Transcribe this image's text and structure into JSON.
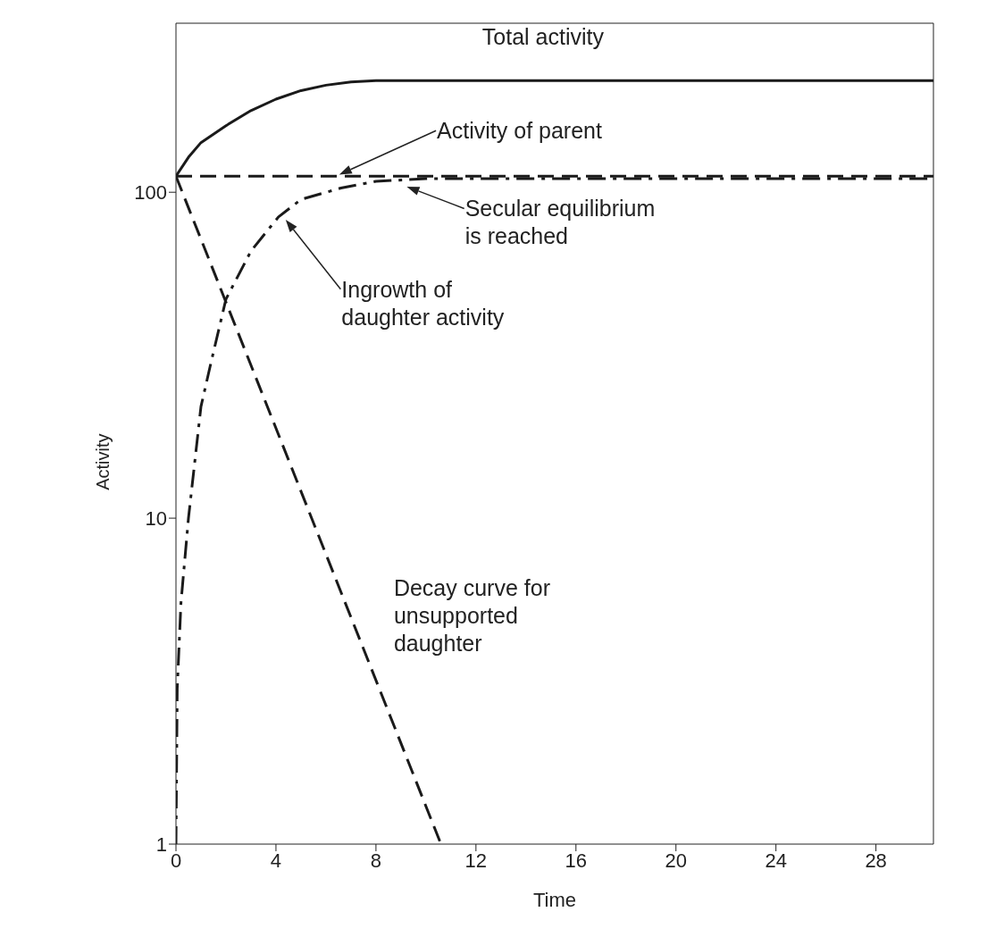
{
  "chart_data": {
    "type": "line",
    "xlabel": "Time",
    "ylabel": "Activity",
    "log": "y",
    "xlim": [
      0,
      30.3
    ],
    "xticks": [
      0,
      4,
      8,
      12,
      16,
      20,
      24,
      28
    ],
    "ylim": [
      1,
      330
    ],
    "yticks": [
      1,
      10,
      100
    ],
    "marker": "none",
    "series": [
      {
        "color": "#1a1a1a",
        "line_style": "solid",
        "x": [
          0,
          0.5,
          1,
          2,
          3,
          4,
          5,
          6,
          7,
          8,
          10,
          15,
          20,
          25,
          30.3
        ],
        "values": [
          112,
          128,
          142,
          160,
          178,
          193,
          205,
          213,
          218,
          220,
          220,
          220,
          220,
          220,
          220
        ]
      },
      {
        "color": "#1a1a1a",
        "line_style": "dashed",
        "x": [
          0,
          30.3
        ],
        "values": [
          112,
          112
        ]
      },
      {
        "color": "#1a1a1a",
        "line_style": "dashdot",
        "x": [
          0,
          0.05,
          0.2,
          0.5,
          1,
          1.4,
          2,
          3,
          4.1,
          5,
          6.6,
          8,
          10,
          15,
          20,
          30.3
        ],
        "values": [
          1,
          3,
          5.5,
          10,
          22,
          30,
          47,
          66,
          84,
          95,
          103,
          108,
          110,
          110,
          110,
          110
        ]
      },
      {
        "color": "#1a1a1a",
        "line_style": "dashed",
        "x": [
          0,
          10.6
        ],
        "values": [
          112,
          1
        ]
      }
    ],
    "annotations": [
      {
        "text": "Total activity",
        "x": 15,
        "y": 220
      },
      "Activity of parent",
      {
        "text": "Secular equilibrium\nis reached",
        "x": 9.1,
        "y": 105
      },
      "Ingrowth of\ndaughter activity",
      {
        "text": "Decay curve for\nunsupported\ndaughter",
        "x": 8,
        "y": 3.2
      }
    ]
  }
}
